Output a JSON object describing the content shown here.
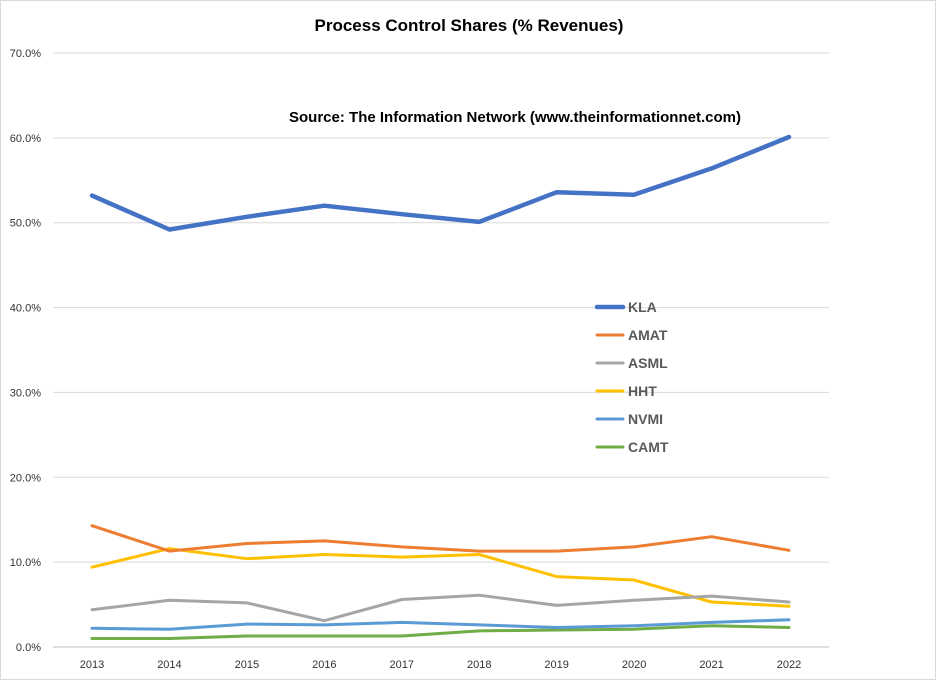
{
  "chart_data": {
    "type": "line",
    "title": "Process Control Shares (% Revenues)",
    "annotation": "Source: The Information Network (www.theinformationnet.com)",
    "xlabel": "",
    "ylabel": "",
    "x": [
      "2013",
      "2014",
      "2015",
      "2016",
      "2017",
      "2018",
      "2019",
      "2020",
      "2021",
      "2022"
    ],
    "ylim": [
      0,
      70
    ],
    "yticks": [
      0,
      10,
      20,
      30,
      40,
      50,
      60,
      70
    ],
    "ytick_labels": [
      "0.0%",
      "10.0%",
      "20.0%",
      "30.0%",
      "40.0%",
      "50.0%",
      "60.0%",
      "70.0%"
    ],
    "grid": true,
    "legend_position": "right-center",
    "series": [
      {
        "name": "KLA",
        "color": "#4472C4",
        "values": [
          53.2,
          49.2,
          50.7,
          52.0,
          51.0,
          50.1,
          53.6,
          53.3,
          56.4,
          60.1
        ]
      },
      {
        "name": "AMAT",
        "color": "#ED7D31",
        "values": [
          14.3,
          11.3,
          12.2,
          12.5,
          11.8,
          11.3,
          11.3,
          11.8,
          13.0,
          11.4
        ]
      },
      {
        "name": "ASML",
        "color": "#A5A5A5",
        "values": [
          4.4,
          5.5,
          5.2,
          3.1,
          5.6,
          6.1,
          4.9,
          5.5,
          6.0,
          5.3
        ]
      },
      {
        "name": "HHT",
        "color": "#FFC000",
        "values": [
          9.4,
          11.6,
          10.4,
          10.9,
          10.6,
          10.9,
          8.3,
          7.9,
          5.3,
          4.8
        ]
      },
      {
        "name": "NVMI",
        "color": "#5B9BD5",
        "values": [
          2.2,
          2.1,
          2.7,
          2.6,
          2.9,
          2.6,
          2.3,
          2.5,
          2.9,
          3.2
        ]
      },
      {
        "name": "CAMT",
        "color": "#70AD47",
        "values": [
          1.0,
          1.0,
          1.3,
          1.3,
          1.3,
          1.9,
          2.0,
          2.1,
          2.5,
          2.3
        ]
      }
    ]
  }
}
